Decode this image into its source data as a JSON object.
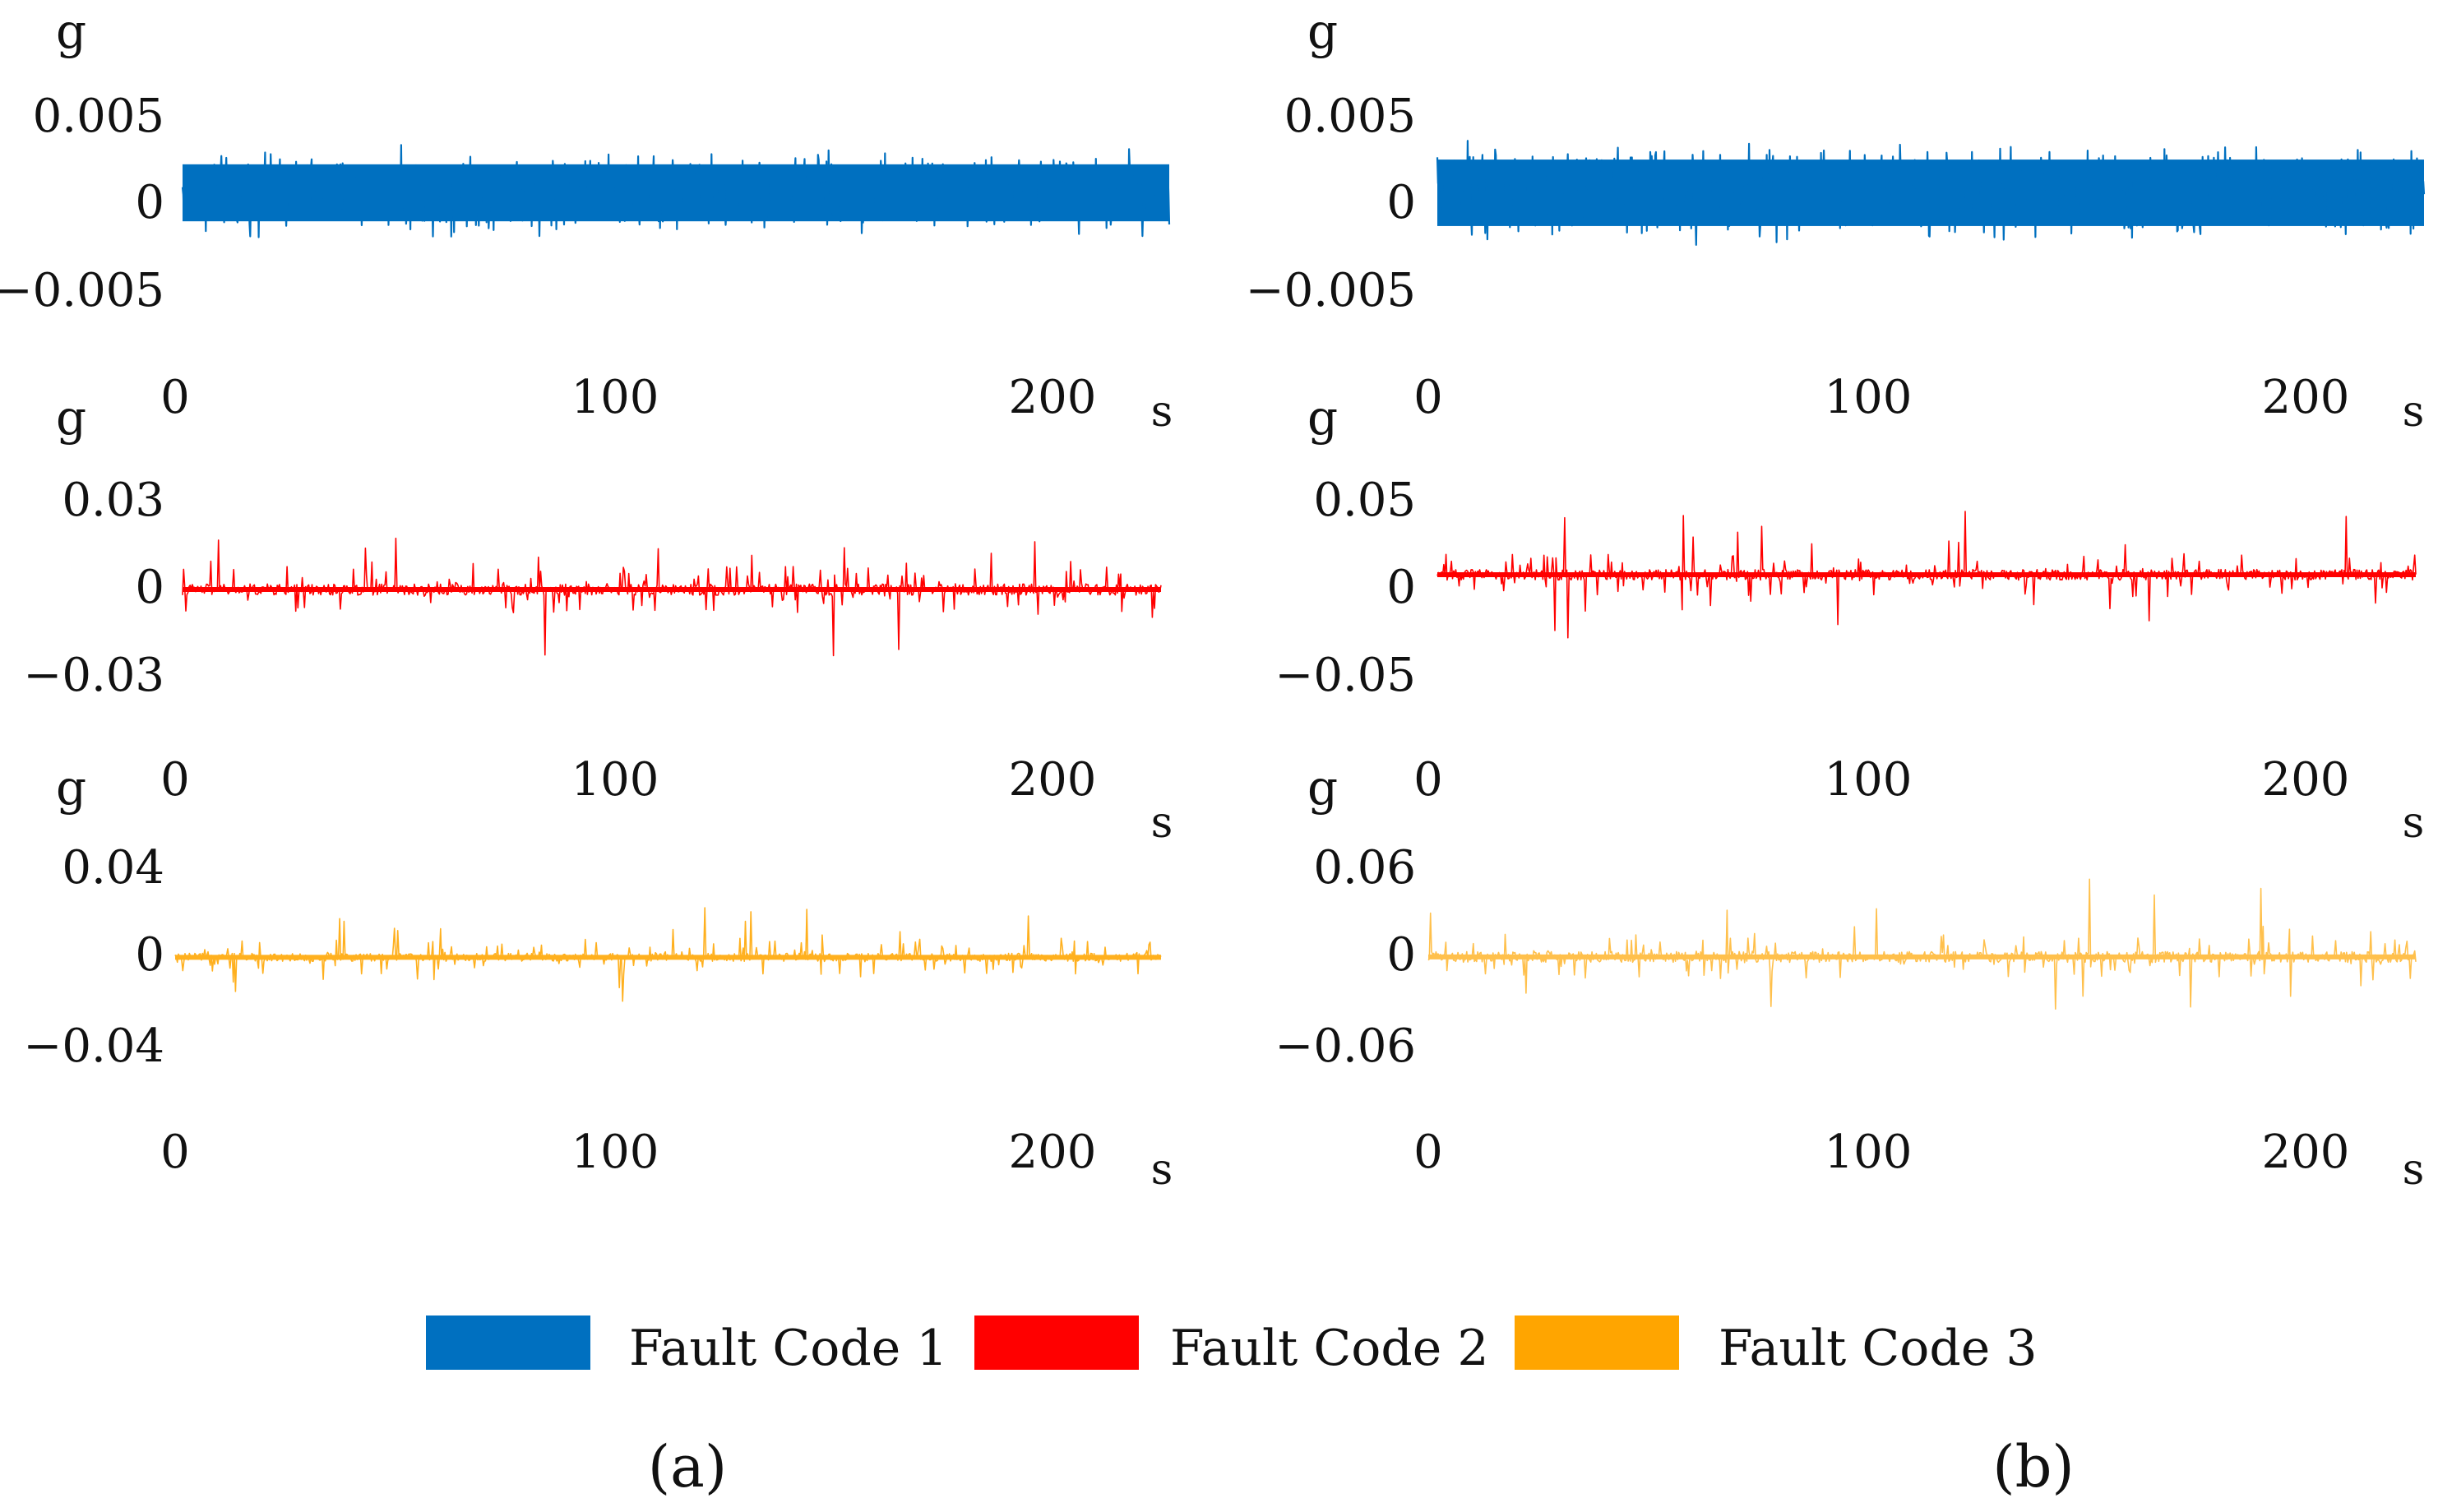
{
  "chart_data": [
    {
      "panel": "a",
      "type": "line",
      "ylabel": "g",
      "xlabel": "s",
      "series_name": "Fault Code 1",
      "color": "#0070C0",
      "ylim": [
        -0.005,
        0.005
      ],
      "yticks": [
        "0.005",
        "0",
        "−0.005"
      ],
      "xlim": [
        0,
        225
      ],
      "xticks": [
        "0",
        "100",
        "200"
      ],
      "baseline": 0.0005,
      "noise_amplitude": 0.003,
      "noise_type": "dense",
      "samples": 1400
    },
    {
      "panel": "a",
      "type": "line",
      "ylabel": "g",
      "xlabel": "s",
      "series_name": "Fault Code 2",
      "color": "#FF0000",
      "ylim": [
        -0.03,
        0.03
      ],
      "yticks": [
        "0.03",
        "0",
        "−0.03"
      ],
      "xlim": [
        0,
        225
      ],
      "xticks": [
        "0",
        "100",
        "200"
      ],
      "baseline": -0.0003,
      "noise_amplitude": 0.032,
      "noise_type": "spiky",
      "samples": 900
    },
    {
      "panel": "a",
      "type": "line",
      "ylabel": "g",
      "xlabel": "s",
      "series_name": "Fault Code 3",
      "color": "#FFB01E",
      "ylim": [
        -0.04,
        0.04
      ],
      "yticks": [
        "0.04",
        "0",
        "−0.04"
      ],
      "xlim": [
        0,
        225
      ],
      "xticks": [
        "0",
        "100",
        "200"
      ],
      "baseline": -0.0005,
      "noise_amplitude": 0.03,
      "noise_type": "spiky",
      "samples": 900
    },
    {
      "panel": "b",
      "type": "line",
      "ylabel": "g",
      "xlabel": "s",
      "series_name": "Fault Code 1",
      "color": "#0070C0",
      "ylim": [
        -0.005,
        0.005
      ],
      "yticks": [
        "0.005",
        "0",
        "−0.005"
      ],
      "xlim": [
        0,
        225
      ],
      "xticks": [
        "0",
        "100",
        "200"
      ],
      "baseline": 0.0005,
      "noise_amplitude": 0.0035,
      "noise_type": "dense",
      "samples": 1400
    },
    {
      "panel": "b",
      "type": "line",
      "ylabel": "g",
      "xlabel": "s",
      "series_name": "Fault Code 2",
      "color": "#FF0000",
      "ylim": [
        -0.05,
        0.05
      ],
      "yticks": [
        "0.05",
        "0",
        "−0.05"
      ],
      "xlim": [
        0,
        225
      ],
      "xticks": [
        "0",
        "100",
        "200"
      ],
      "baseline": 0.008,
      "noise_amplitude": 0.05,
      "noise_type": "spiky",
      "samples": 900
    },
    {
      "panel": "b",
      "type": "line",
      "ylabel": "g",
      "xlabel": "s",
      "series_name": "Fault Code 3",
      "color": "#FFC04C",
      "ylim": [
        -0.06,
        0.06
      ],
      "yticks": [
        "0.06",
        "0",
        "−0.06"
      ],
      "xlim": [
        0,
        225
      ],
      "xticks": [
        "0",
        "100",
        "200"
      ],
      "baseline": -0.0005,
      "noise_amplitude": 0.06,
      "noise_type": "spiky",
      "samples": 900
    }
  ],
  "legend": [
    {
      "label": "Fault Code 1",
      "color": "#0070C0"
    },
    {
      "label": "Fault Code 2",
      "color": "#FF0000"
    },
    {
      "label": "Fault Code 3",
      "color": "#FFA500"
    }
  ],
  "panel_labels": {
    "a": "(a)",
    "b": "(b)"
  }
}
